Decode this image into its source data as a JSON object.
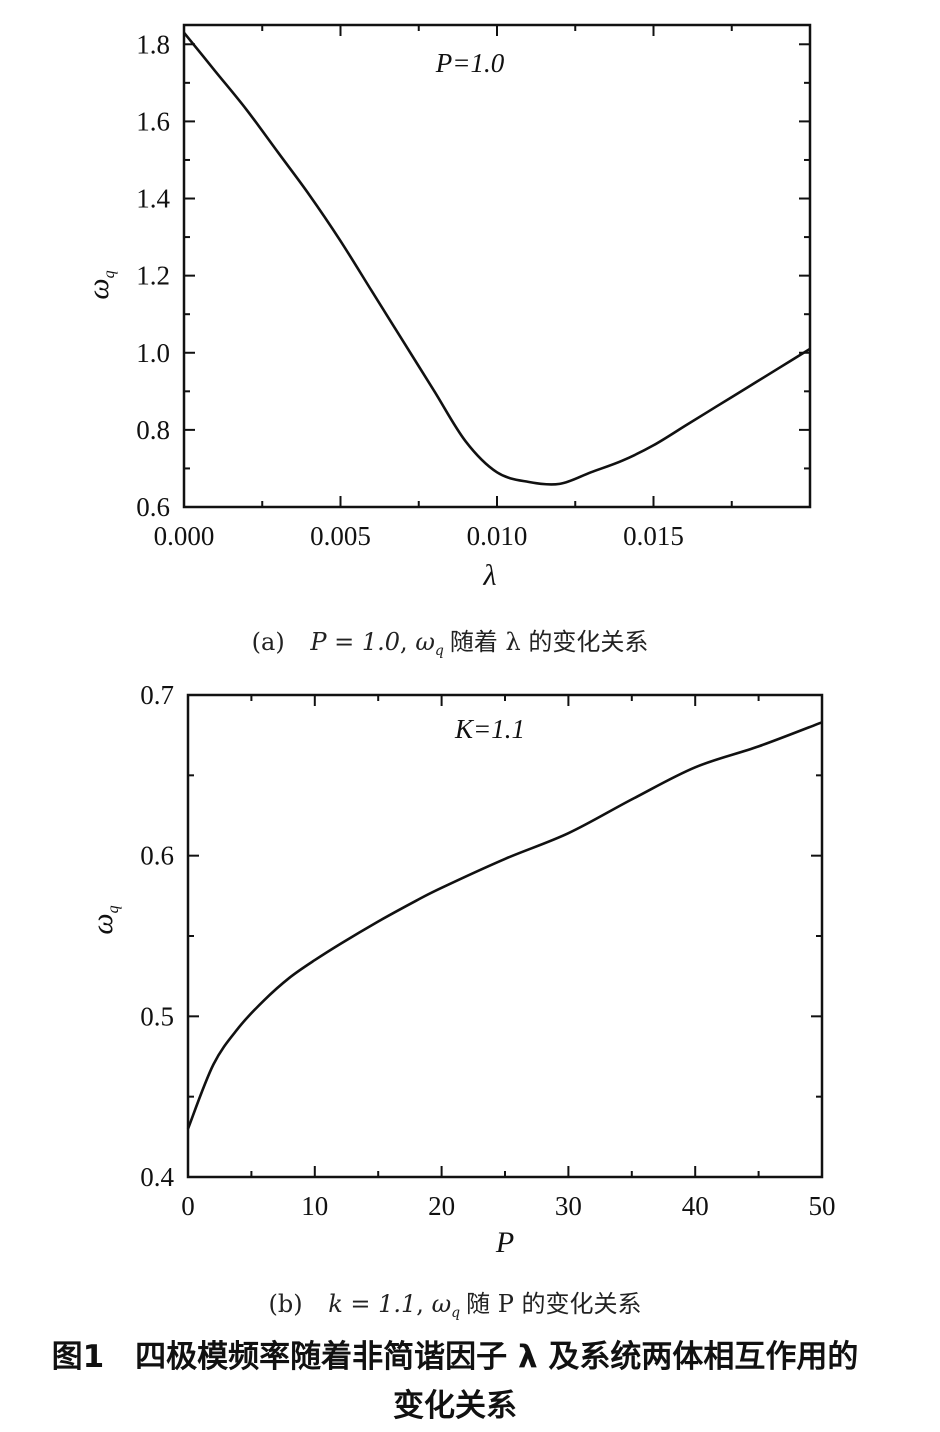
{
  "chart_data": [
    {
      "type": "line",
      "panel": "a",
      "annotation": "P=1.0",
      "xlabel": "λ",
      "ylabel": "ω_q",
      "xlim": [
        0.0,
        0.02
      ],
      "ylim": [
        0.6,
        1.85
      ],
      "xticks": [
        0.0,
        0.005,
        0.01,
        0.015
      ],
      "xtick_labels": [
        "0.000",
        "0.005",
        "0.010",
        "0.015"
      ],
      "yticks": [
        0.6,
        0.8,
        1.0,
        1.2,
        1.4,
        1.6,
        1.8
      ],
      "ytick_labels": [
        "0.6",
        "0.8",
        "1.0",
        "1.2",
        "1.4",
        "1.6",
        "1.8"
      ],
      "grid": false,
      "series": [
        {
          "x": [
            0.0,
            0.001,
            0.002,
            0.003,
            0.004,
            0.005,
            0.006,
            0.007,
            0.008,
            0.009,
            0.01,
            0.011,
            0.012,
            0.013,
            0.014,
            0.015,
            0.016,
            0.017,
            0.018,
            0.019,
            0.02
          ],
          "y": [
            1.83,
            1.73,
            1.63,
            1.52,
            1.41,
            1.29,
            1.16,
            1.03,
            0.9,
            0.77,
            0.69,
            0.665,
            0.66,
            0.69,
            0.72,
            0.76,
            0.81,
            0.86,
            0.91,
            0.96,
            1.01
          ]
        }
      ],
      "caption": {
        "prefix": "(a)",
        "cond": "P = 1.0",
        "omega": "ω",
        "sub": "q",
        "tail": "随着 λ 的变化关系"
      }
    },
    {
      "type": "line",
      "panel": "b",
      "annotation": "K=1.1",
      "xlabel": "P",
      "ylabel": "ω_q",
      "xlim": [
        0,
        50
      ],
      "ylim": [
        0.4,
        0.7
      ],
      "xticks": [
        0,
        10,
        20,
        30,
        40,
        50
      ],
      "xtick_labels": [
        "0",
        "10",
        "20",
        "30",
        "40",
        "50"
      ],
      "yticks": [
        0.4,
        0.5,
        0.6,
        0.7
      ],
      "ytick_labels": [
        "0.4",
        "0.5",
        "0.6",
        "0.7"
      ],
      "grid": false,
      "series": [
        {
          "x": [
            0,
            2,
            4,
            6,
            8,
            10,
            12,
            15,
            18,
            20,
            25,
            30,
            35,
            40,
            45,
            50
          ],
          "y": [
            0.43,
            0.47,
            0.493,
            0.51,
            0.524,
            0.535,
            0.545,
            0.559,
            0.572,
            0.58,
            0.598,
            0.614,
            0.635,
            0.655,
            0.668,
            0.683
          ]
        }
      ],
      "caption": {
        "prefix": "(b)",
        "cond": "k = 1.1",
        "omega": "ω",
        "sub": "q",
        "tail": "随 P 的变化关系"
      }
    }
  ],
  "figure_title_line1": "图1　四极模频率随着非简谐因子 λ 及系统两体相互作用的",
  "figure_title_line2": "变化关系"
}
